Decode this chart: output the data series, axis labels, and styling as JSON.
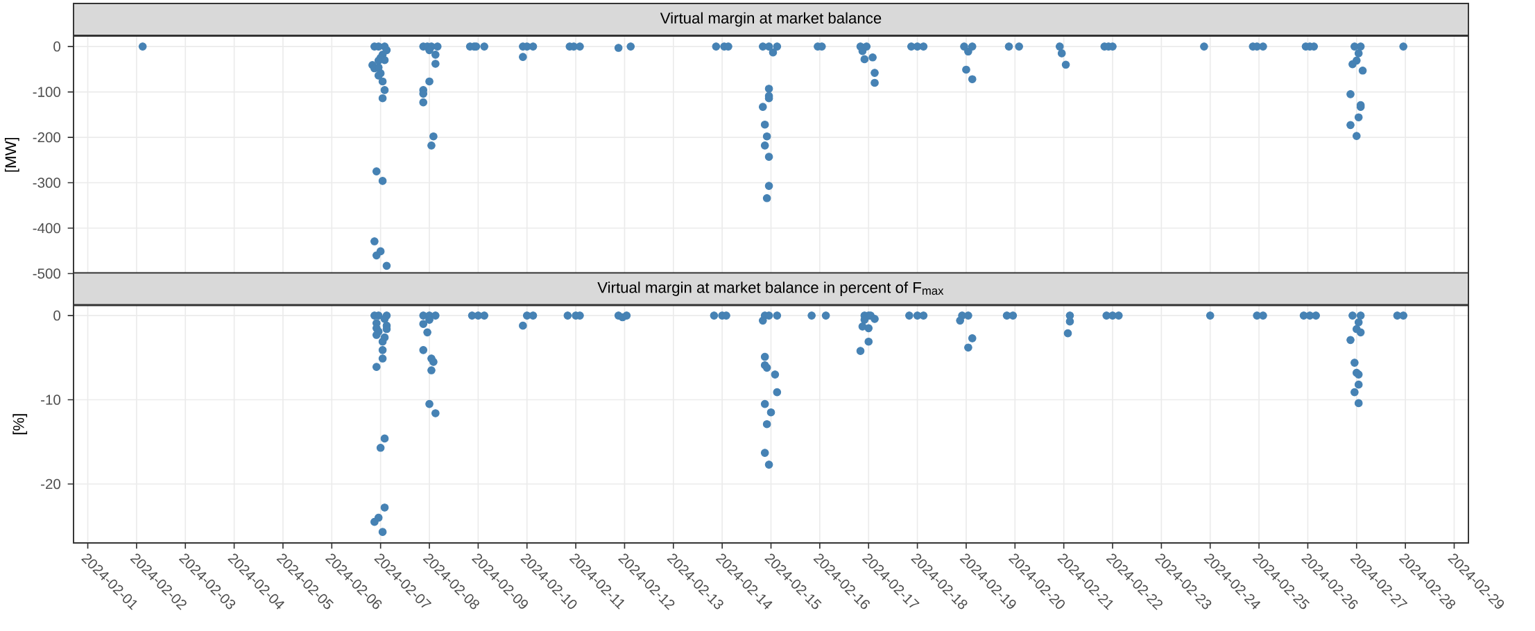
{
  "chart_data": [
    {
      "type": "scatter",
      "title": "Virtual margin at market balance",
      "ylabel": "[MW]",
      "color": "#4682b4",
      "marker": "circle",
      "grid": true,
      "tick_labels": "y",
      "xlim": [
        "2024-01-31T17:00",
        "2024-02-29T07:00"
      ],
      "xticks": [
        "2024-02-01",
        "2024-02-02",
        "2024-02-03",
        "2024-02-04",
        "2024-02-05",
        "2024-02-06",
        "2024-02-07",
        "2024-02-08",
        "2024-02-09",
        "2024-02-10",
        "2024-02-11",
        "2024-02-12",
        "2024-02-13",
        "2024-02-14",
        "2024-02-15",
        "2024-02-16",
        "2024-02-17",
        "2024-02-18",
        "2024-02-19",
        "2024-02-20",
        "2024-02-21",
        "2024-02-22",
        "2024-02-23",
        "2024-02-24",
        "2024-02-25",
        "2024-02-26",
        "2024-02-27",
        "2024-02-28",
        "2024-02-29"
      ],
      "ylim": [
        -500,
        23
      ],
      "yticks": [
        -500,
        -400,
        -300,
        -200,
        -100,
        0
      ],
      "x": [
        "2024-02-02T03:00",
        "2024-02-06T21:00",
        "2024-02-06T23:00",
        "2024-02-07T02:00",
        "2024-02-07T03:00",
        "2024-02-07T01:00",
        "2024-02-07T00:00",
        "2024-02-07T02:00",
        "2024-02-06T23:00",
        "2024-02-06T20:00",
        "2024-02-06T21:00",
        "2024-02-06T23:00",
        "2024-02-07T00:00",
        "2024-02-06T23:00",
        "2024-02-07T01:00",
        "2024-02-07T02:00",
        "2024-02-07T01:00",
        "2024-02-06T22:00",
        "2024-02-07T01:00",
        "2024-02-06T21:00",
        "2024-02-07T00:00",
        "2024-02-06T22:00",
        "2024-02-07T03:00",
        "2024-02-07T21:00",
        "2024-02-07T23:00",
        "2024-02-08T01:00",
        "2024-02-08T04:00",
        "2024-02-08T00:00",
        "2024-02-08T03:00",
        "2024-02-08T03:00",
        "2024-02-08T00:00",
        "2024-02-07T21:00",
        "2024-02-07T21:00",
        "2024-02-07T21:00",
        "2024-02-08T02:00",
        "2024-02-08T01:00",
        "2024-02-08T20:00",
        "2024-02-08T22:00",
        "2024-02-08T23:00",
        "2024-02-09T03:00",
        "2024-02-09T22:00",
        "2024-02-10T00:00",
        "2024-02-10T03:00",
        "2024-02-09T22:00",
        "2024-02-10T21:00",
        "2024-02-10T23:00",
        "2024-02-11T02:00",
        "2024-02-11T21:00",
        "2024-02-12T03:00",
        "2024-02-13T21:00",
        "2024-02-14T01:00",
        "2024-02-14T03:00",
        "2024-02-14T20:00",
        "2024-02-14T23:00",
        "2024-02-15T03:00",
        "2024-02-15T01:00",
        "2024-02-14T23:00",
        "2024-02-14T23:00",
        "2024-02-14T23:00",
        "2024-02-14T20:00",
        "2024-02-14T21:00",
        "2024-02-14T22:00",
        "2024-02-14T21:00",
        "2024-02-14T23:00",
        "2024-02-14T23:00",
        "2024-02-14T22:00",
        "2024-02-15T23:00",
        "2024-02-16T01:00",
        "2024-02-16T20:00",
        "2024-02-16T23:00",
        "2024-02-16T21:00",
        "2024-02-16T22:00",
        "2024-02-17T02:00",
        "2024-02-17T03:00",
        "2024-02-17T03:00",
        "2024-02-17T21:00",
        "2024-02-18T00:00",
        "2024-02-18T03:00",
        "2024-02-18T23:00",
        "2024-02-19T03:00",
        "2024-02-19T01:00",
        "2024-02-19T00:00",
        "2024-02-19T03:00",
        "2024-02-19T21:00",
        "2024-02-20T02:00",
        "2024-02-20T22:00",
        "2024-02-20T23:00",
        "2024-02-21T01:00",
        "2024-02-21T20:00",
        "2024-02-21T22:00",
        "2024-02-22T00:00",
        "2024-02-23T21:00",
        "2024-02-24T21:00",
        "2024-02-24T23:00",
        "2024-02-25T02:00",
        "2024-02-25T23:00",
        "2024-02-26T01:00",
        "2024-02-26T03:00",
        "2024-02-26T23:00",
        "2024-02-27T02:00",
        "2024-02-27T01:00",
        "2024-02-27T00:00",
        "2024-02-26T22:00",
        "2024-02-27T03:00",
        "2024-02-26T21:00",
        "2024-02-27T02:00",
        "2024-02-27T02:00",
        "2024-02-27T01:00",
        "2024-02-26T21:00",
        "2024-02-27T00:00",
        "2024-02-27T23:00"
      ],
      "values": [
        0,
        0,
        0,
        0,
        -8,
        -18,
        -25,
        -30,
        -31,
        -41,
        -48,
        -46,
        -59,
        -64,
        -77,
        -96,
        -114,
        -275,
        -296,
        -429,
        -451,
        -460,
        -483,
        0,
        0,
        0,
        0,
        -8,
        -18,
        -38,
        -77,
        -96,
        -104,
        -123,
        -198,
        -218,
        0,
        0,
        0,
        0,
        0,
        0,
        0,
        -23,
        0,
        0,
        0,
        -3,
        0,
        0,
        0,
        0,
        0,
        0,
        0,
        -13,
        -93,
        -109,
        -114,
        -133,
        -172,
        -198,
        -218,
        -243,
        -307,
        -334,
        0,
        0,
        0,
        0,
        -10,
        -28,
        -24,
        -58,
        -80,
        0,
        0,
        0,
        0,
        0,
        -11,
        -51,
        -72,
        0,
        0,
        0,
        -15,
        -40,
        0,
        0,
        0,
        0,
        0,
        0,
        0,
        0,
        0,
        0,
        0,
        0,
        -15,
        -31,
        -39,
        -53,
        -105,
        -129,
        -133,
        -156,
        -173,
        -197,
        0
      ]
    },
    {
      "type": "scatter",
      "title": "Virtual margin at market balance in percent of F$_{max}$",
      "ylabel": "[%]",
      "color": "#4682b4",
      "marker": "circle",
      "grid": true,
      "xlim": [
        "2024-01-31T17:00",
        "2024-02-29T07:00"
      ],
      "xticks": [
        "2024-02-01",
        "2024-02-02",
        "2024-02-03",
        "2024-02-04",
        "2024-02-05",
        "2024-02-06",
        "2024-02-07",
        "2024-02-08",
        "2024-02-09",
        "2024-02-10",
        "2024-02-11",
        "2024-02-12",
        "2024-02-13",
        "2024-02-14",
        "2024-02-15",
        "2024-02-16",
        "2024-02-17",
        "2024-02-18",
        "2024-02-19",
        "2024-02-20",
        "2024-02-21",
        "2024-02-22",
        "2024-02-23",
        "2024-02-24",
        "2024-02-25",
        "2024-02-26",
        "2024-02-27",
        "2024-02-28",
        "2024-02-29"
      ],
      "ylim": [
        -27,
        1.2
      ],
      "yticks": [
        -20,
        -10,
        0
      ],
      "x": [
        "2024-02-06T21:00",
        "2024-02-06T23:00",
        "2024-02-07T03:00",
        "2024-02-07T02:00",
        "2024-02-07T03:00",
        "2024-02-06T22:00",
        "2024-02-07T03:00",
        "2024-02-06T22:00",
        "2024-02-06T23:00",
        "2024-02-06T22:00",
        "2024-02-07T02:00",
        "2024-02-07T01:00",
        "2024-02-07T01:00",
        "2024-02-07T01:00",
        "2024-02-06T22:00",
        "2024-02-07T02:00",
        "2024-02-07T00:00",
        "2024-02-07T02:00",
        "2024-02-06T23:00",
        "2024-02-06T21:00",
        "2024-02-07T01:00",
        "2024-02-07T21:00",
        "2024-02-08T00:00",
        "2024-02-08T03:00",
        "2024-02-08T00:00",
        "2024-02-07T21:00",
        "2024-02-07T23:00",
        "2024-02-07T21:00",
        "2024-02-08T01:00",
        "2024-02-08T02:00",
        "2024-02-08T01:00",
        "2024-02-08T00:00",
        "2024-02-08T03:00",
        "2024-02-08T21:00",
        "2024-02-09T00:00",
        "2024-02-09T03:00",
        "2024-02-10T00:00",
        "2024-02-10T03:00",
        "2024-02-09T22:00",
        "2024-02-10T20:00",
        "2024-02-11T00:00",
        "2024-02-11T02:00",
        "2024-02-11T21:00",
        "2024-02-11T23:00",
        "2024-02-12T01:00",
        "2024-02-13T20:00",
        "2024-02-14T00:00",
        "2024-02-14T02:00",
        "2024-02-14T21:00",
        "2024-02-14T23:00",
        "2024-02-15T03:00",
        "2024-02-14T20:00",
        "2024-02-14T21:00",
        "2024-02-14T21:00",
        "2024-02-14T22:00",
        "2024-02-15T02:00",
        "2024-02-15T03:00",
        "2024-02-14T21:00",
        "2024-02-15T00:00",
        "2024-02-14T22:00",
        "2024-02-14T21:00",
        "2024-02-14T23:00",
        "2024-02-15T20:00",
        "2024-02-16T03:00",
        "2024-02-16T22:00",
        "2024-02-17T00:00",
        "2024-02-17T01:00",
        "2024-02-17T03:00",
        "2024-02-16T22:00",
        "2024-02-16T21:00",
        "2024-02-17T00:00",
        "2024-02-17T00:00",
        "2024-02-16T20:00",
        "2024-02-17T20:00",
        "2024-02-18T00:00",
        "2024-02-18T03:00",
        "2024-02-18T22:00",
        "2024-02-19T01:00",
        "2024-02-18T21:00",
        "2024-02-19T03:00",
        "2024-02-19T01:00",
        "2024-02-19T20:00",
        "2024-02-19T23:00",
        "2024-02-21T03:00",
        "2024-02-21T03:00",
        "2024-02-21T02:00",
        "2024-02-21T21:00",
        "2024-02-22T00:00",
        "2024-02-22T03:00",
        "2024-02-24T00:00",
        "2024-02-24T23:00",
        "2024-02-25T02:00",
        "2024-02-25T22:00",
        "2024-02-26T01:00",
        "2024-02-26T04:00",
        "2024-02-26T22:00",
        "2024-02-27T02:00",
        "2024-02-27T01:00",
        "2024-02-27T00:00",
        "2024-02-27T02:00",
        "2024-02-26T21:00",
        "2024-02-26T23:00",
        "2024-02-27T00:00",
        "2024-02-27T01:00",
        "2024-02-27T01:00",
        "2024-02-26T23:00",
        "2024-02-27T01:00",
        "2024-02-27T20:00",
        "2024-02-27T23:00"
      ],
      "values": [
        0,
        0,
        0,
        -0.4,
        -1.2,
        -0.9,
        -1.6,
        -1.5,
        -1.9,
        -2.3,
        -2.6,
        -3.1,
        -4.1,
        -5.1,
        -6.1,
        -14.6,
        -15.7,
        -22.8,
        -24.0,
        -24.5,
        -25.7,
        0,
        0,
        0,
        -0.5,
        -1.0,
        -2.0,
        -4.1,
        -5.1,
        -5.5,
        -6.5,
        -10.5,
        -11.6,
        0,
        0,
        0,
        0,
        0,
        -1.2,
        0,
        0,
        0,
        0,
        -0.2,
        0,
        0,
        0,
        0,
        0,
        0,
        0,
        -0.6,
        -4.9,
        -5.9,
        -6.2,
        -7.0,
        -9.1,
        -10.5,
        -11.5,
        -12.9,
        -16.3,
        -17.7,
        0,
        0,
        0,
        0,
        0,
        -0.4,
        -0.5,
        -1.3,
        -1.5,
        -3.1,
        -4.2,
        0,
        0,
        0,
        0,
        0,
        -0.6,
        -2.7,
        -3.8,
        0,
        0,
        0,
        -0.7,
        -2.1,
        0,
        0,
        0,
        0,
        0,
        0,
        0,
        0,
        0,
        0,
        0,
        -0.8,
        -1.6,
        -2.0,
        -2.9,
        -5.6,
        -6.8,
        -7.0,
        -8.2,
        -9.1,
        -10.4,
        0,
        0
      ]
    }
  ]
}
